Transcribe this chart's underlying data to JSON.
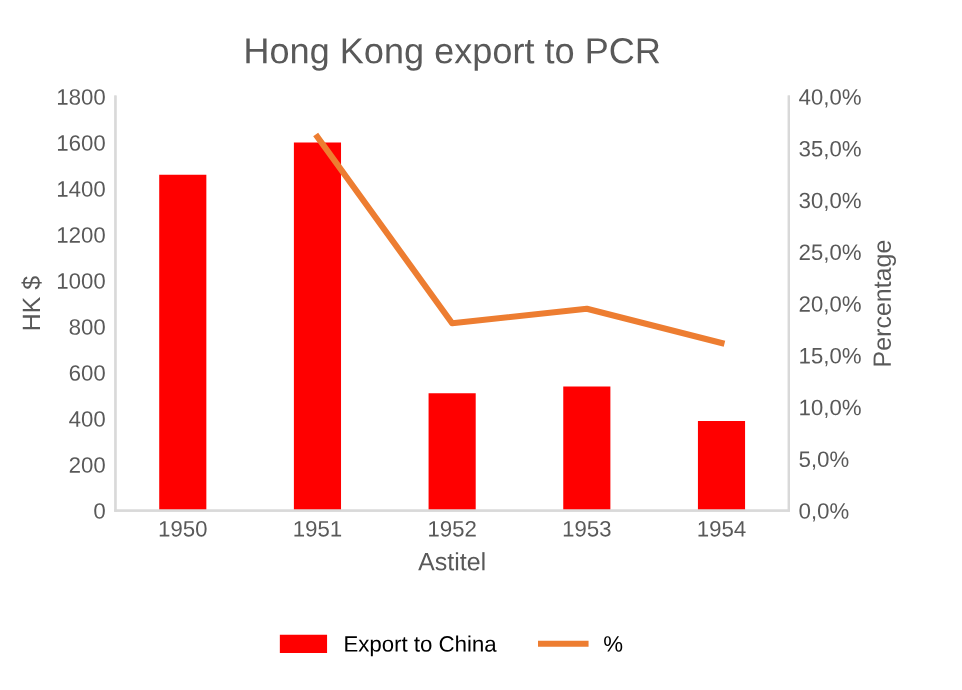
{
  "chart_data": {
    "type": "bar",
    "title": "Hong Kong export to PCR",
    "xlabel": "Astitel",
    "ylabel": "HK $",
    "y2label": "Percentage",
    "categories": [
      "1950",
      "1951",
      "1952",
      "1953",
      "1954"
    ],
    "series": [
      {
        "name": "Export to China",
        "color": "#ff0000",
        "values": [
          1460,
          1600,
          510,
          540,
          390
        ]
      },
      {
        "name": "%",
        "type": "line",
        "axis": "y2",
        "color": "#ed7d31",
        "values": [
          null,
          36.1,
          18.1,
          19.5,
          16.2
        ]
      }
    ],
    "ylim": [
      0,
      1800
    ],
    "yticks": [
      0,
      200,
      400,
      600,
      800,
      1000,
      1200,
      1400,
      1600,
      1800
    ],
    "y2lim": [
      0,
      40
    ],
    "y2ticks": [
      {
        "value": 0,
        "label": "0,0%"
      },
      {
        "value": 5,
        "label": "5,0%"
      },
      {
        "value": 10,
        "label": "10,0%"
      },
      {
        "value": 15,
        "label": "15,0%"
      },
      {
        "value": 20,
        "label": "20,0%"
      },
      {
        "value": 25,
        "label": "25,0%"
      },
      {
        "value": 30,
        "label": "30,0%"
      },
      {
        "value": 35,
        "label": "35,0%"
      },
      {
        "value": 40,
        "label": "40,0%"
      }
    ],
    "grid": false,
    "legend": "bottom",
    "marker": "none"
  }
}
